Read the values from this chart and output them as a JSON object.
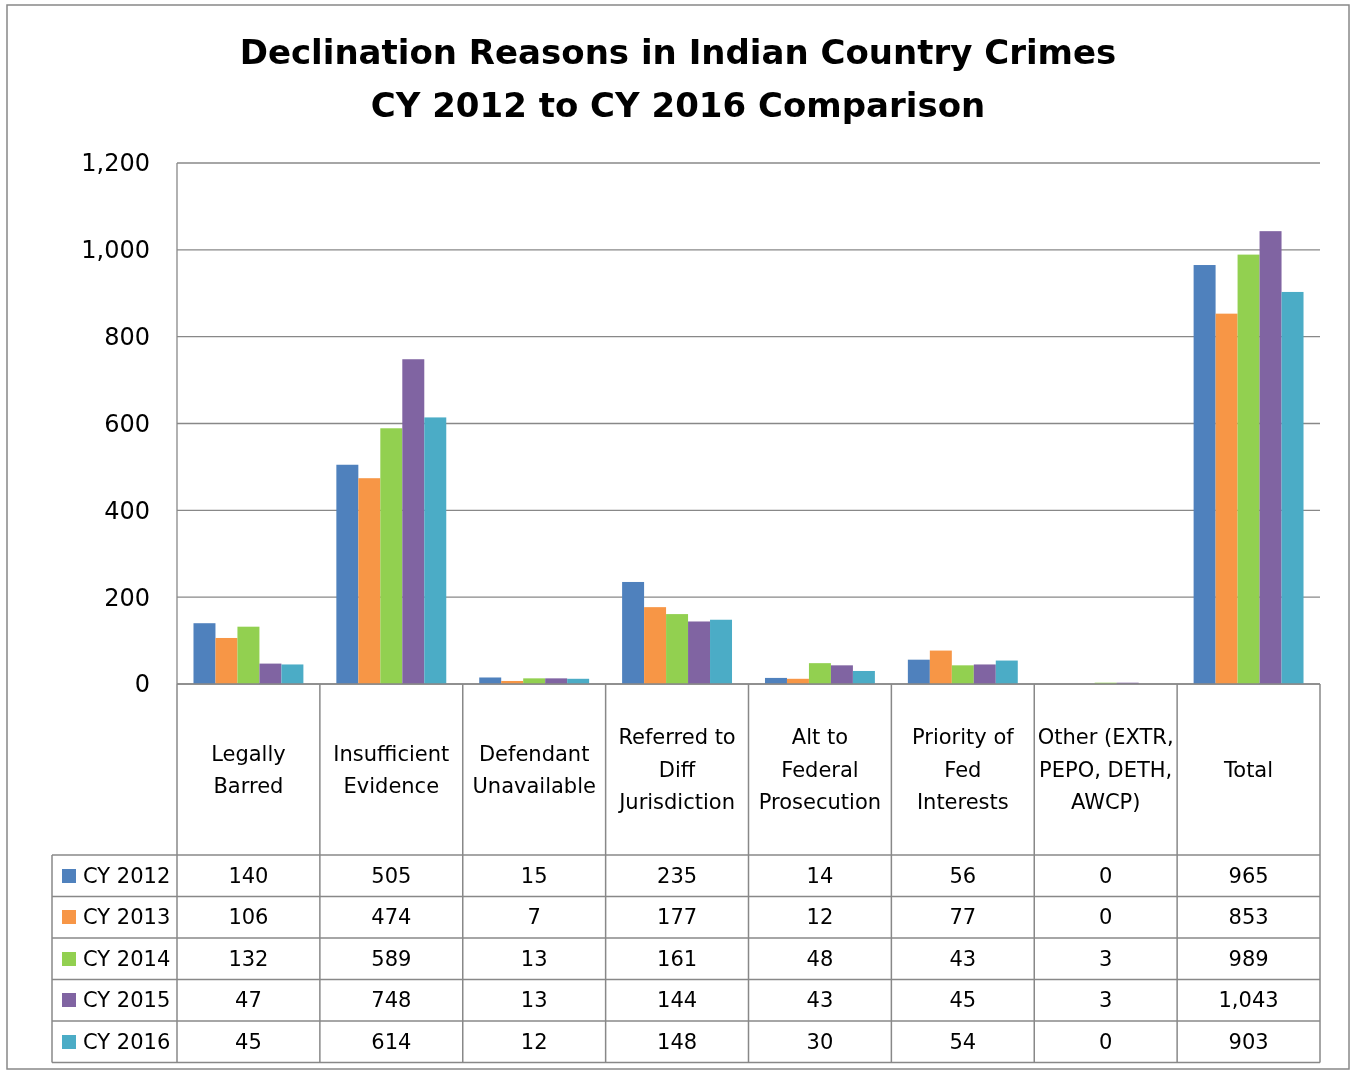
{
  "chart_data": {
    "type": "bar",
    "title": "Declination Reasons in Indian Country Crimes\nCY 2012 to CY 2016 Comparison",
    "categories": [
      "Legally Barred",
      "Insufficient Evidence",
      "Defendant Unavailable",
      "Referred to Diff Jurisdiction",
      "Alt to Federal Prosecution",
      "Priority of Fed Interests",
      "Other (EXTR, PEPO, DETH, AWCP)",
      "Total"
    ],
    "series": [
      {
        "name": "CY 2012",
        "color": "#4f81bd",
        "values": [
          140,
          505,
          15,
          235,
          14,
          56,
          0,
          965
        ],
        "value_labels": [
          "140",
          "505",
          "15",
          "235",
          "14",
          "56",
          "0",
          "965"
        ]
      },
      {
        "name": "CY 2013",
        "color": "#f79646",
        "values": [
          106,
          474,
          7,
          177,
          12,
          77,
          0,
          853
        ],
        "value_labels": [
          "106",
          "474",
          "7",
          "177",
          "12",
          "77",
          "0",
          "853"
        ]
      },
      {
        "name": "CY 2014",
        "color": "#92d050",
        "values": [
          132,
          589,
          13,
          161,
          48,
          43,
          3,
          989
        ],
        "value_labels": [
          "132",
          "589",
          "13",
          "161",
          "48",
          "43",
          "3",
          "989"
        ]
      },
      {
        "name": "CY 2015",
        "color": "#8064a2",
        "values": [
          47,
          748,
          13,
          144,
          43,
          45,
          3,
          1043
        ],
        "value_labels": [
          "47",
          "748",
          "13",
          "144",
          "43",
          "45",
          "3",
          "1,043"
        ]
      },
      {
        "name": "CY 2016",
        "color": "#4bacc6",
        "values": [
          45,
          614,
          12,
          148,
          30,
          54,
          0,
          903
        ],
        "value_labels": [
          "45",
          "614",
          "12",
          "148",
          "30",
          "54",
          "0",
          "903"
        ]
      }
    ],
    "ylim": [
      0,
      1200
    ],
    "yticks": [
      {
        "value": 0,
        "label": "0"
      },
      {
        "value": 200,
        "label": "200"
      },
      {
        "value": 400,
        "label": "400"
      },
      {
        "value": 600,
        "label": "600"
      },
      {
        "value": 800,
        "label": "800"
      },
      {
        "value": 1000,
        "label": "1,000"
      },
      {
        "value": 1200,
        "label": "1,200"
      }
    ],
    "grid": "y",
    "legend": "bottom left"
  }
}
